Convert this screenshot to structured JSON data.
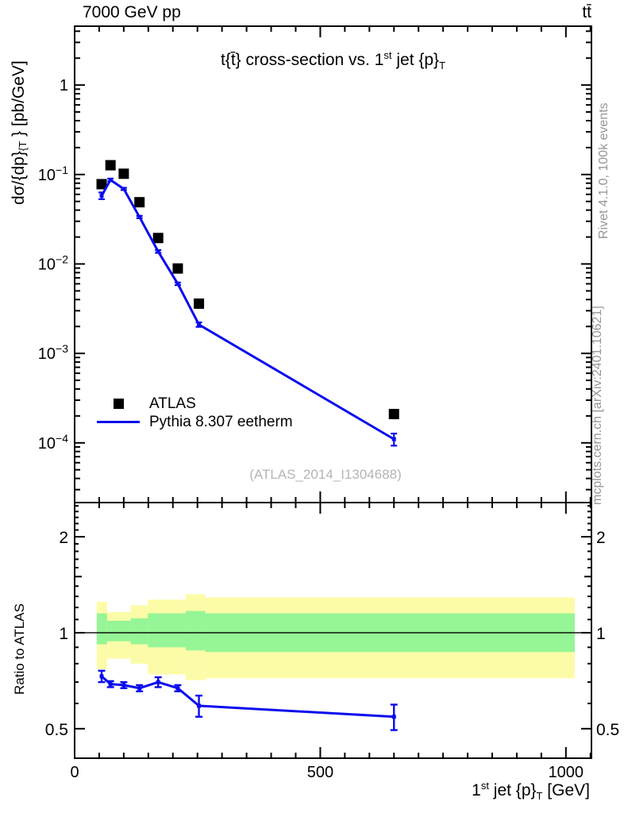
{
  "header": {
    "left": "7000 GeV pp",
    "right": "tt̄"
  },
  "title_segments": [
    {
      "t": "t{t̄} cross-section vs. 1"
    },
    {
      "t": "st",
      "sup": true
    },
    {
      "t": " jet {p}"
    },
    {
      "t": "T",
      "sub": true
    }
  ],
  "axes": {
    "x_label_segments": [
      {
        "t": "1"
      },
      {
        "t": "st",
        "sup": true
      },
      {
        "t": " jet {p}"
      },
      {
        "t": "T",
        "sub": true
      },
      {
        "t": " [GeV]"
      }
    ],
    "y_main_label_segments": [
      {
        "t": "dσ/{dp}"
      },
      {
        "t": "{T",
        "sub": true
      },
      {
        "t": " } [pb/GeV]"
      }
    ],
    "y_ratio_label": "Ratio to ATLAS"
  },
  "side_notes": {
    "top": "Rivet 4.1.0,  100k events",
    "bottom": "mcplots.cern.ch [arXiv:2401.10621]"
  },
  "watermark": "(ATLAS_2014_I1304688)",
  "legend": {
    "entries": [
      {
        "label": "ATLAS",
        "marker": "square-icon",
        "color": "#000000"
      },
      {
        "label": "Pythia 8.307 eetherm",
        "marker": "line-icon",
        "color": "#0000ee"
      }
    ]
  },
  "colors": {
    "mc_line": "#0b0bee",
    "band_yellow": "#fcfca8",
    "band_green": "#96f596",
    "gray_text": "#969696",
    "watermark": "#b5b5b5"
  },
  "chart_data": [
    {
      "type": "line",
      "title": "t{t̄} cross-section vs. 1st jet {p}_T",
      "xlabel": "1st jet {p}_T [GeV]",
      "ylabel": "dσ/{dp}_{T} } [pb/GeV]",
      "x_scale": "linear",
      "y_scale": "log",
      "xlim": [
        0,
        1052
      ],
      "ylim": [
        2.15e-05,
        4.55
      ],
      "x_major_ticks": [
        {
          "v": 0,
          "label": "0"
        },
        {
          "v": 500,
          "label": "500"
        },
        {
          "v": 1000,
          "label": "1000"
        }
      ],
      "x_minor_step": 50,
      "y_major_ticks": [
        {
          "v": 1,
          "base": "1",
          "exp": null
        },
        {
          "v": 0.1,
          "base": "10",
          "exp": "−1"
        },
        {
          "v": 0.01,
          "base": "10",
          "exp": "−2"
        },
        {
          "v": 0.001,
          "base": "10",
          "exp": "−3"
        },
        {
          "v": 0.0001,
          "base": "10",
          "exp": "−4"
        }
      ],
      "x": [
        55,
        73,
        100,
        132,
        170,
        210,
        253,
        650
      ],
      "series": [
        {
          "name": "ATLAS",
          "style": "scatter",
          "marker": "filled-square",
          "color": "#000000",
          "values": [
            0.078,
            0.127,
            0.102,
            0.049,
            0.0195,
            0.0089,
            0.0036,
            0.00021
          ]
        },
        {
          "name": "Pythia 8.307 eetherm",
          "style": "line",
          "color": "#0b0bee",
          "values": [
            0.058,
            0.087,
            0.069,
            0.0335,
            0.0138,
            0.006,
            0.0021,
            0.00011
          ],
          "yerr": [
            0.005,
            0.003,
            0.002,
            0.001,
            0.0005,
            0.0002,
            0.00012,
            1.7e-05
          ]
        }
      ]
    },
    {
      "type": "ratio",
      "ylabel": "Ratio to ATLAS",
      "x_scale": "linear",
      "y_scale": "log",
      "xlim": [
        0,
        1052
      ],
      "ylim": [
        0.404,
        2.56
      ],
      "reference_line": 1,
      "y_major_ticks": [
        {
          "v": 2,
          "label": "2"
        },
        {
          "v": 1,
          "label": "1"
        },
        {
          "v": 0.5,
          "label": "0.5"
        }
      ],
      "y_medium_ticks": [
        1.5
      ],
      "y_minor_ticks": [
        0.6,
        0.7,
        0.8,
        0.9,
        1.1,
        1.2,
        1.3,
        1.4,
        1.6,
        1.7,
        1.8,
        1.9,
        2.1,
        2.2,
        2.3,
        2.4,
        2.5
      ],
      "bands": [
        {
          "x0": 45,
          "x1": 66,
          "yellow": [
            0.77,
            1.25
          ],
          "green": [
            0.92,
            1.15
          ]
        },
        {
          "x0": 66,
          "x1": 114,
          "yellow": [
            0.83,
            1.16
          ],
          "green": [
            0.94,
            1.09
          ]
        },
        {
          "x0": 114,
          "x1": 149,
          "yellow": [
            0.8,
            1.22
          ],
          "green": [
            0.92,
            1.11
          ]
        },
        {
          "x0": 149,
          "x1": 226,
          "yellow": [
            0.74,
            1.27
          ],
          "green": [
            0.9,
            1.15
          ]
        },
        {
          "x0": 226,
          "x1": 266,
          "yellow": [
            0.71,
            1.32
          ],
          "green": [
            0.88,
            1.17
          ]
        },
        {
          "x0": 266,
          "x1": 1018,
          "yellow": [
            0.72,
            1.29
          ],
          "green": [
            0.87,
            1.15
          ]
        }
      ],
      "x": [
        55,
        73,
        100,
        132,
        170,
        210,
        253,
        650
      ],
      "series": [
        {
          "name": "Pythia 8.307 eetherm / ATLAS",
          "color": "#0b0bee",
          "values": [
            0.73,
            0.69,
            0.685,
            0.67,
            0.7,
            0.67,
            0.59,
            0.545
          ],
          "yerr": [
            0.03,
            0.015,
            0.015,
            0.015,
            0.025,
            0.015,
            0.045,
            0.05
          ]
        }
      ]
    }
  ]
}
